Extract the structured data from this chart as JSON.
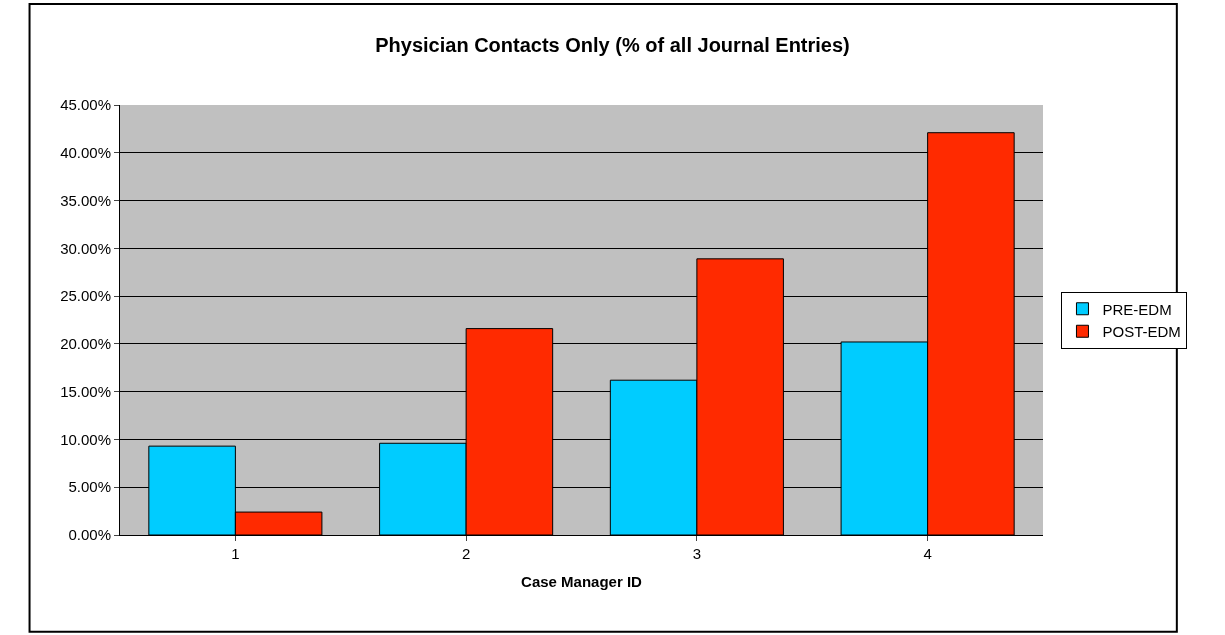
{
  "chart_data": {
    "type": "bar",
    "title": "Physician Contacts Only (% of all Journal Entries)",
    "xlabel": "Case Manager ID",
    "categories": [
      "1",
      "2",
      "3",
      "4"
    ],
    "series": [
      {
        "name": "PRE-EDM",
        "color": "#00ccff",
        "values": [
          9.3,
          9.6,
          16.2,
          20.2
        ]
      },
      {
        "name": "POST-EDM",
        "color": "#ff2a00",
        "values": [
          2.4,
          21.6,
          28.9,
          42.1
        ]
      }
    ],
    "ylim": [
      0,
      45
    ],
    "yticks": [
      {
        "value": 0,
        "label": "0.00%"
      },
      {
        "value": 5,
        "label": "5.00%"
      },
      {
        "value": 10,
        "label": "10.00%"
      },
      {
        "value": 15,
        "label": "15.00%"
      },
      {
        "value": 20,
        "label": "20.00%"
      },
      {
        "value": 25,
        "label": "25.00%"
      },
      {
        "value": 30,
        "label": "30.00%"
      },
      {
        "value": 35,
        "label": "35.00%"
      },
      {
        "value": 40,
        "label": "40.00%"
      },
      {
        "value": 45,
        "label": "45.00%"
      }
    ],
    "grid": "y",
    "legend": "right"
  }
}
